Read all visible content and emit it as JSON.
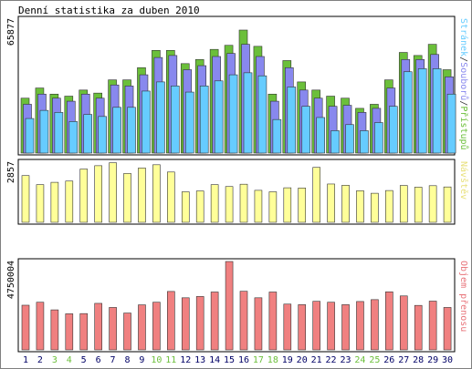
{
  "chart_data": [
    {
      "type": "bar",
      "title": "Denní statistika za duben 2010",
      "ylabel_parts": [
        {
          "text": "Stránek",
          "color": "#66ccff"
        },
        {
          "text": "/",
          "color": "#333333"
        },
        {
          "text": "Souborů",
          "color": "#8888ee"
        },
        {
          "text": "/",
          "color": "#333333"
        },
        {
          "text": "Přístupů",
          "color": "#6bbf3a"
        }
      ],
      "ymax_label": "65877",
      "ylim": [
        0,
        65877
      ],
      "categories": [
        "1",
        "2",
        "3",
        "4",
        "5",
        "6",
        "7",
        "8",
        "9",
        "10",
        "11",
        "12",
        "13",
        "14",
        "15",
        "16",
        "17",
        "18",
        "19",
        "20",
        "21",
        "22",
        "23",
        "24",
        "25",
        "26",
        "27",
        "28",
        "29",
        "30"
      ],
      "series": [
        {
          "name": "Přístupů",
          "color": "#6bbf3a",
          "values": [
            27000,
            32000,
            29000,
            28000,
            31000,
            29500,
            36000,
            36000,
            42000,
            50500,
            50500,
            44000,
            46000,
            51000,
            53000,
            60500,
            52500,
            29000,
            45500,
            35000,
            31000,
            28000,
            27000,
            22000,
            24000,
            36000,
            49500,
            48000,
            53500,
            41000
          ]
        },
        {
          "name": "Souborů",
          "color": "#8888ee",
          "values": [
            24000,
            29000,
            27000,
            25500,
            29000,
            27000,
            33500,
            33000,
            38500,
            47000,
            48000,
            41000,
            43000,
            47500,
            49000,
            53500,
            47500,
            25500,
            42000,
            31000,
            27000,
            23000,
            23500,
            20000,
            22000,
            32000,
            46000,
            46000,
            48500,
            37500
          ]
        },
        {
          "name": "Stránek",
          "color": "#66ccff",
          "values": [
            17000,
            21000,
            20000,
            15500,
            19000,
            18000,
            22500,
            22500,
            30500,
            35000,
            33000,
            30000,
            33000,
            35500,
            38500,
            39500,
            38000,
            16500,
            32500,
            23000,
            17500,
            11000,
            14000,
            11000,
            15000,
            23000,
            40000,
            41500,
            41500,
            29000
          ]
        }
      ]
    },
    {
      "type": "bar",
      "ylabel_parts": [
        {
          "text": "Návštěv",
          "color": "#e8e07a"
        }
      ],
      "ymax_label": "2857",
      "ylim": [
        0,
        2857
      ],
      "categories": [
        "1",
        "2",
        "3",
        "4",
        "5",
        "6",
        "7",
        "8",
        "9",
        "10",
        "11",
        "12",
        "13",
        "14",
        "15",
        "16",
        "17",
        "18",
        "19",
        "20",
        "21",
        "22",
        "23",
        "24",
        "25",
        "26",
        "27",
        "28",
        "29",
        "30"
      ],
      "series": [
        {
          "name": "Návštěv",
          "color": "#ffff99",
          "values": [
            2220,
            1790,
            1900,
            1960,
            2530,
            2690,
            2830,
            2320,
            2580,
            2735,
            2390,
            1450,
            1490,
            1790,
            1700,
            1810,
            1520,
            1450,
            1640,
            1630,
            2610,
            1820,
            1760,
            1500,
            1380,
            1510,
            1750,
            1670,
            1740,
            1680
          ]
        }
      ]
    },
    {
      "type": "bar",
      "ylabel_parts": [
        {
          "text": "Objem přenosu",
          "color": "#e8747a"
        }
      ],
      "ymax_label": "4750004",
      "ylim": [
        0,
        4750004
      ],
      "categories": [
        "1",
        "2",
        "3",
        "4",
        "5",
        "6",
        "7",
        "8",
        "9",
        "10",
        "11",
        "12",
        "13",
        "14",
        "15",
        "16",
        "17",
        "18",
        "19",
        "20",
        "21",
        "22",
        "23",
        "24",
        "25",
        "26",
        "27",
        "28",
        "29",
        "30"
      ],
      "series": [
        {
          "name": "Objem přenosu",
          "color": "#f08080",
          "values": [
            2400000,
            2560000,
            2150000,
            1940000,
            1950000,
            2500000,
            2280000,
            1980000,
            2420000,
            2560000,
            3140000,
            2800000,
            2870000,
            3110000,
            4750000,
            3150000,
            2800000,
            3110000,
            2460000,
            2430000,
            2610000,
            2560000,
            2430000,
            2600000,
            2700000,
            3120000,
            2900000,
            2390000,
            2620000,
            2280000
          ]
        }
      ]
    }
  ],
  "weekend_days": [
    "3",
    "4",
    "10",
    "11",
    "17",
    "18",
    "24",
    "25"
  ],
  "colors": {
    "weekday_label": "#000066",
    "weekend_label": "#6bbf3a",
    "panel_bg": "#ffffff",
    "outer_bg": "#ffffff",
    "border": "#000000"
  }
}
